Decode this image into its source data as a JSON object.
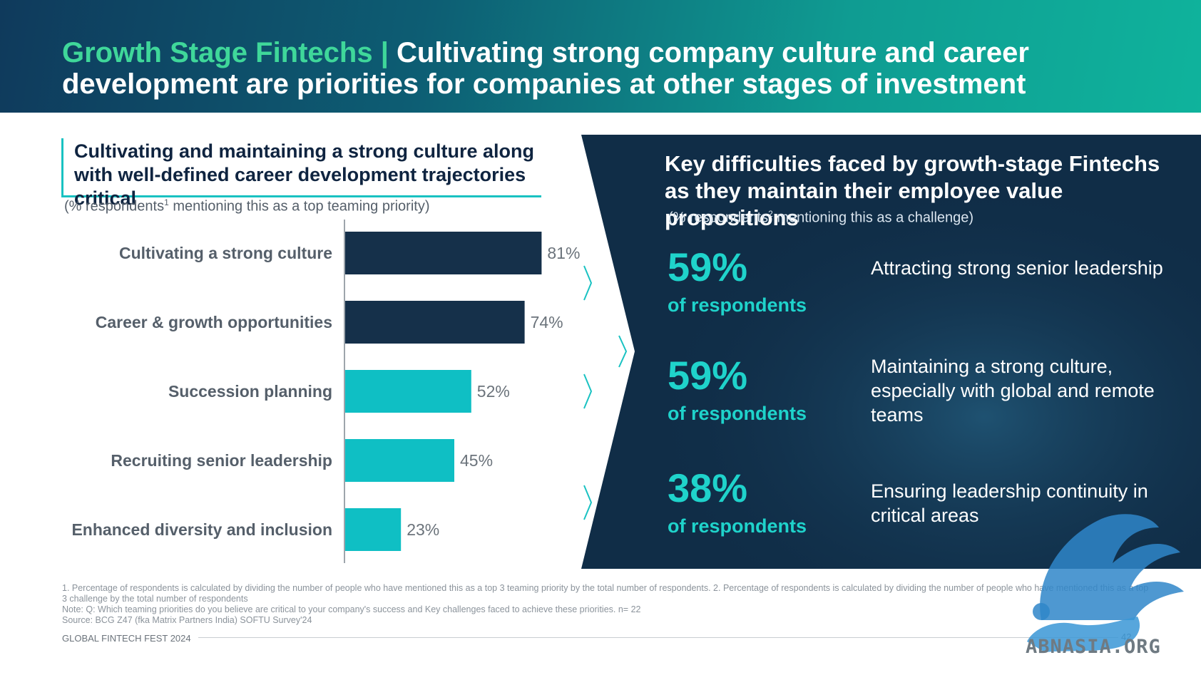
{
  "header": {
    "title_accent": "Growth Stage Fintechs |",
    "title_rest": " Cultivating strong company culture and career development are priorities for companies at other stages of investment"
  },
  "left": {
    "title": "Cultivating and maintaining a strong culture along with well-defined career development trajectories critical",
    "subtitle_pre": "(% respondents",
    "subtitle_sup": "1",
    "subtitle_post": " mentioning this as a top teaming priority)"
  },
  "chart_data": {
    "type": "bar",
    "orientation": "horizontal",
    "categories": [
      "Cultivating a strong culture",
      "Career & growth opportunities",
      "Succession planning",
      "Recruiting senior leadership",
      "Enhanced diversity and inclusion"
    ],
    "values": [
      81,
      74,
      52,
      45,
      23
    ],
    "value_labels": [
      "81%",
      "74%",
      "52%",
      "45%",
      "23%"
    ],
    "colors": [
      "#15304a",
      "#15304a",
      "#0fbfc4",
      "#0fbfc4",
      "#0fbfc4"
    ],
    "xlim": [
      0,
      100
    ],
    "grid": false,
    "legend": "none"
  },
  "panel": {
    "title": "Key difficulties faced by growth-stage Fintechs as they maintain their employee value propositions",
    "subtitle_pre": "(% respondents",
    "subtitle_sup": "2",
    "subtitle_post": " mentioning this as a challenge)",
    "stats": [
      {
        "pct": "59%",
        "label": "of respondents",
        "desc": "Attracting strong senior leadership"
      },
      {
        "pct": "59%",
        "label": "of respondents",
        "desc": "Maintaining a strong culture, especially with global and remote teams"
      },
      {
        "pct": "38%",
        "label": "of respondents",
        "desc": "Ensuring leadership continuity in critical areas"
      }
    ],
    "bg_color": "#102d47",
    "accent_color": "#1fd3cb"
  },
  "footer": {
    "note1": "1. Percentage of respondents is calculated by dividing the number of people who have mentioned this as a top 3 teaming priority by the total number of respondents. 2. Percentage of respondents is calculated by dividing the number of people who have mentioned this as a top 3 challenge by the total number of respondents",
    "note2": "Note: Q: Which teaming priorities do you believe are critical to your company's success and Key challenges faced to achieve these priorities. n= 22",
    "source": "Source: BCG Z47 (fka Matrix Partners India) SOFTU Survey'24",
    "brand": "GLOBAL FINTECH FEST 2024",
    "page": "42"
  },
  "watermark": {
    "text": "ABNASIA.ORG"
  }
}
